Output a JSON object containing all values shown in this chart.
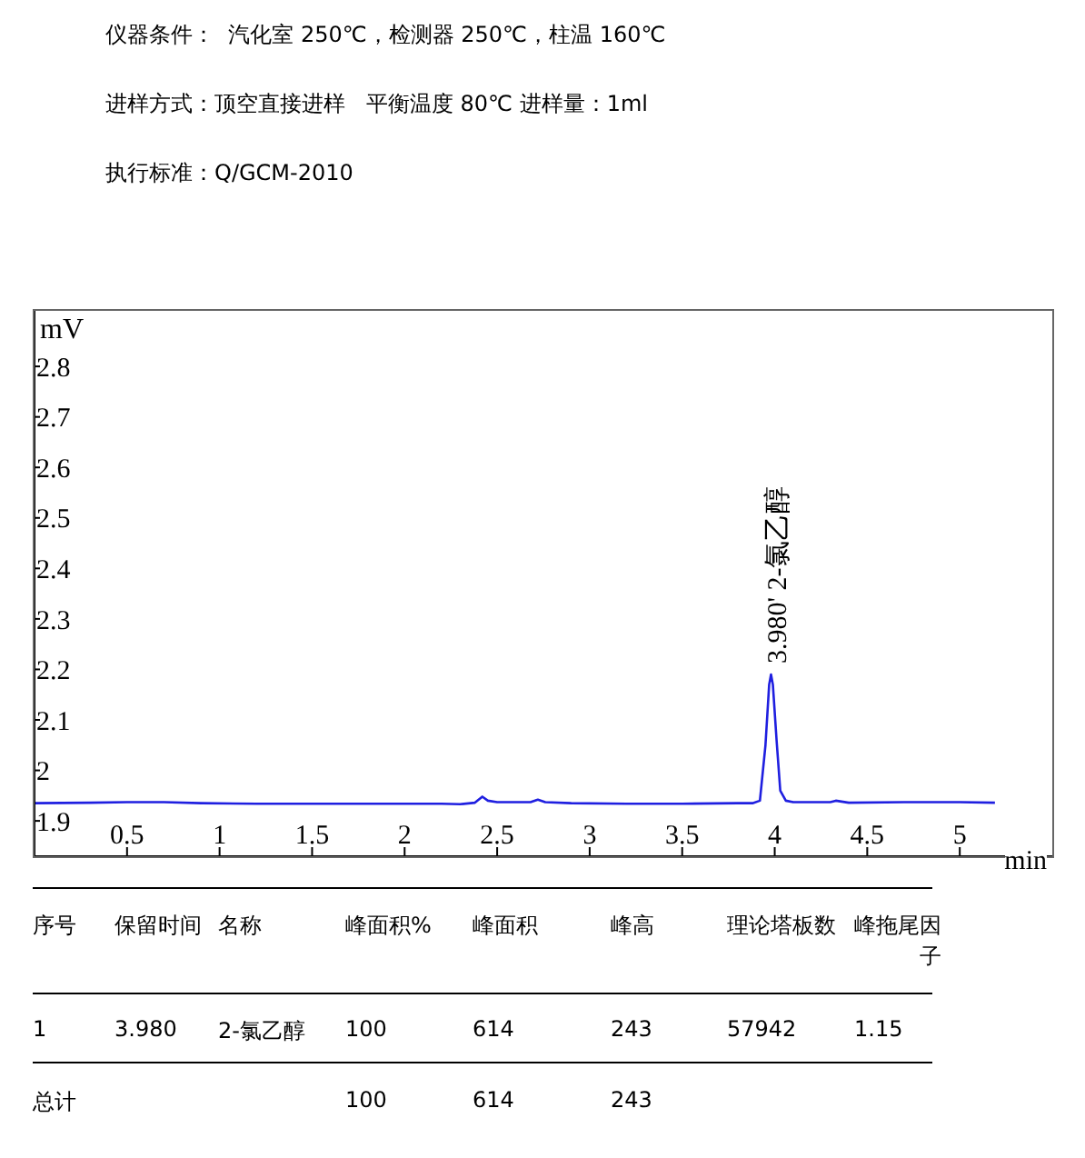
{
  "chart_data": {
    "type": "line",
    "xlabel": "min",
    "ylabel": "mV",
    "x": [
      0,
      0.3,
      0.5,
      0.7,
      0.9,
      1.2,
      1.5,
      1.8,
      2.0,
      2.2,
      2.3,
      2.38,
      2.42,
      2.45,
      2.5,
      2.6,
      2.68,
      2.72,
      2.76,
      2.9,
      3.2,
      3.5,
      3.8,
      3.88,
      3.92,
      3.95,
      3.97,
      3.98,
      3.99,
      4.01,
      4.03,
      4.06,
      4.1,
      4.3,
      4.33,
      4.4,
      4.7,
      5.0,
      5.19
    ],
    "series": [
      {
        "color": "#1f1fe0",
        "values": [
          1.935,
          1.936,
          1.937,
          1.937,
          1.935,
          1.934,
          1.934,
          1.934,
          1.934,
          1.934,
          1.933,
          1.936,
          1.948,
          1.94,
          1.937,
          1.937,
          1.937,
          1.942,
          1.937,
          1.935,
          1.934,
          1.934,
          1.935,
          1.935,
          1.94,
          2.05,
          2.17,
          2.19,
          2.17,
          2.06,
          1.96,
          1.94,
          1.937,
          1.937,
          1.94,
          1.936,
          1.937,
          1.937,
          1.936
        ]
      }
    ],
    "xlim": [
      0,
      5.5
    ],
    "xticks": [
      0.5,
      1,
      1.5,
      2,
      2.5,
      3,
      3.5,
      4,
      4.5,
      5
    ],
    "ylim": [
      1.83,
      2.91
    ],
    "yticks": [
      1.9,
      2,
      2.1,
      2.2,
      2.3,
      2.4,
      2.5,
      2.6,
      2.7,
      2.8
    ],
    "grid": false,
    "legend": false,
    "marker": "none",
    "line_style": "solid",
    "annotations": [
      "仪器条件：  汽化室 250℃，检测器 250℃，柱温 160℃",
      "进样方式：顶空直接进样   平衡温度 80℃ 进样量：1ml",
      "执行标准：Q/GCM-2010",
      {
        "text": "3.980' 2-氯乙醇",
        "x": 3.98,
        "y": 2.19
      },
      "序号",
      "保留时间",
      "名称",
      "峰面积%",
      "峰面积",
      "峰高",
      "理论塔板数",
      "峰拖尾因子",
      "1",
      "3.980",
      "2-氯乙醇",
      "100",
      "614",
      "243",
      "57942",
      "1.15",
      "总计",
      "100",
      "614",
      "243"
    ]
  }
}
